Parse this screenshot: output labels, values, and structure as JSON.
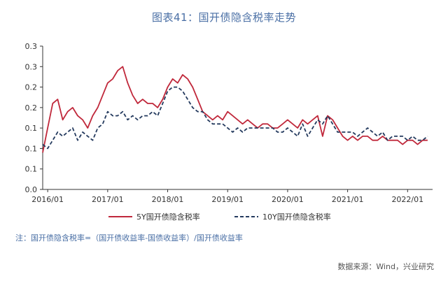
{
  "chart_data": {
    "type": "line",
    "title": "图表41：国开债隐含税率走势",
    "xlabel": "",
    "ylabel": "",
    "x_tick_labels": [
      "2016/01",
      "2017/01",
      "2018/01",
      "2019/01",
      "2020/01",
      "2021/01",
      "2022/01"
    ],
    "y_tick_labels": [
      "0.0",
      "0.1",
      "0.1",
      "0.1",
      "0.2",
      "0.2",
      "0.3",
      "0.3"
    ],
    "ylim": [
      0.0,
      0.35
    ],
    "xlim": [
      "2015-12",
      "2022-06"
    ],
    "grid": false,
    "legend_position": "bottom",
    "series": [
      {
        "name": "5Y国开债隐含税率",
        "color": "#c0283b",
        "style": "solid",
        "x": [
          "2015-12",
          "2016-01",
          "2016-02",
          "2016-03",
          "2016-04",
          "2016-05",
          "2016-06",
          "2016-07",
          "2016-08",
          "2016-09",
          "2016-10",
          "2016-11",
          "2016-12",
          "2017-01",
          "2017-02",
          "2017-03",
          "2017-04",
          "2017-05",
          "2017-06",
          "2017-07",
          "2017-08",
          "2017-09",
          "2017-10",
          "2017-11",
          "2017-12",
          "2018-01",
          "2018-02",
          "2018-03",
          "2018-04",
          "2018-05",
          "2018-06",
          "2018-07",
          "2018-08",
          "2018-09",
          "2018-10",
          "2018-11",
          "2018-12",
          "2019-01",
          "2019-02",
          "2019-03",
          "2019-04",
          "2019-05",
          "2019-06",
          "2019-07",
          "2019-08",
          "2019-09",
          "2019-10",
          "2019-11",
          "2019-12",
          "2020-01",
          "2020-02",
          "2020-03",
          "2020-04",
          "2020-05",
          "2020-06",
          "2020-07",
          "2020-08",
          "2020-09",
          "2020-10",
          "2020-11",
          "2020-12",
          "2021-01",
          "2021-02",
          "2021-03",
          "2021-04",
          "2021-05",
          "2021-06",
          "2021-07",
          "2021-08",
          "2021-09",
          "2021-10",
          "2021-11",
          "2021-12",
          "2022-01",
          "2022-02",
          "2022-03",
          "2022-04",
          "2022-05"
        ],
        "values": [
          0.09,
          0.15,
          0.21,
          0.22,
          0.17,
          0.19,
          0.2,
          0.18,
          0.17,
          0.15,
          0.18,
          0.2,
          0.23,
          0.26,
          0.27,
          0.29,
          0.3,
          0.26,
          0.23,
          0.21,
          0.22,
          0.21,
          0.21,
          0.2,
          0.22,
          0.25,
          0.27,
          0.26,
          0.28,
          0.27,
          0.25,
          0.22,
          0.19,
          0.18,
          0.17,
          0.18,
          0.17,
          0.19,
          0.18,
          0.17,
          0.16,
          0.17,
          0.16,
          0.15,
          0.16,
          0.16,
          0.15,
          0.15,
          0.16,
          0.17,
          0.16,
          0.15,
          0.17,
          0.16,
          0.17,
          0.18,
          0.13,
          0.18,
          0.17,
          0.15,
          0.13,
          0.12,
          0.13,
          0.12,
          0.13,
          0.13,
          0.12,
          0.12,
          0.13,
          0.12,
          0.12,
          0.12,
          0.11,
          0.12,
          0.12,
          0.11,
          0.12,
          0.12
        ]
      },
      {
        "name": "10Y国开债隐含税率",
        "color": "#243a5e",
        "style": "dashed",
        "x": [
          "2015-12",
          "2016-01",
          "2016-02",
          "2016-03",
          "2016-04",
          "2016-05",
          "2016-06",
          "2016-07",
          "2016-08",
          "2016-09",
          "2016-10",
          "2016-11",
          "2016-12",
          "2017-01",
          "2017-02",
          "2017-03",
          "2017-04",
          "2017-05",
          "2017-06",
          "2017-07",
          "2017-08",
          "2017-09",
          "2017-10",
          "2017-11",
          "2017-12",
          "2018-01",
          "2018-02",
          "2018-03",
          "2018-04",
          "2018-05",
          "2018-06",
          "2018-07",
          "2018-08",
          "2018-09",
          "2018-10",
          "2018-11",
          "2018-12",
          "2019-01",
          "2019-02",
          "2019-03",
          "2019-04",
          "2019-05",
          "2019-06",
          "2019-07",
          "2019-08",
          "2019-09",
          "2019-10",
          "2019-11",
          "2019-12",
          "2020-01",
          "2020-02",
          "2020-03",
          "2020-04",
          "2020-05",
          "2020-06",
          "2020-07",
          "2020-08",
          "2020-09",
          "2020-10",
          "2020-11",
          "2020-12",
          "2021-01",
          "2021-02",
          "2021-03",
          "2021-04",
          "2021-05",
          "2021-06",
          "2021-07",
          "2021-08",
          "2021-09",
          "2021-10",
          "2021-11",
          "2021-12",
          "2022-01",
          "2022-02",
          "2022-03",
          "2022-04",
          "2022-05"
        ],
        "values": [
          0.11,
          0.1,
          0.12,
          0.14,
          0.13,
          0.14,
          0.15,
          0.12,
          0.14,
          0.13,
          0.12,
          0.15,
          0.16,
          0.19,
          0.18,
          0.18,
          0.19,
          0.17,
          0.18,
          0.17,
          0.18,
          0.18,
          0.19,
          0.18,
          0.21,
          0.24,
          0.25,
          0.25,
          0.24,
          0.22,
          0.2,
          0.19,
          0.19,
          0.17,
          0.16,
          0.16,
          0.16,
          0.15,
          0.14,
          0.15,
          0.14,
          0.15,
          0.15,
          0.15,
          0.15,
          0.15,
          0.15,
          0.14,
          0.14,
          0.15,
          0.14,
          0.13,
          0.16,
          0.13,
          0.15,
          0.17,
          0.16,
          0.18,
          0.16,
          0.14,
          0.14,
          0.14,
          0.14,
          0.13,
          0.14,
          0.15,
          0.14,
          0.13,
          0.14,
          0.12,
          0.13,
          0.13,
          0.13,
          0.12,
          0.13,
          0.12,
          0.12,
          0.13
        ]
      }
    ]
  },
  "note": "注：国开债隐含税率=（国开债收益率-国债收益率）/国开债收益率",
  "source": "数据来源：Wind，兴业研究"
}
